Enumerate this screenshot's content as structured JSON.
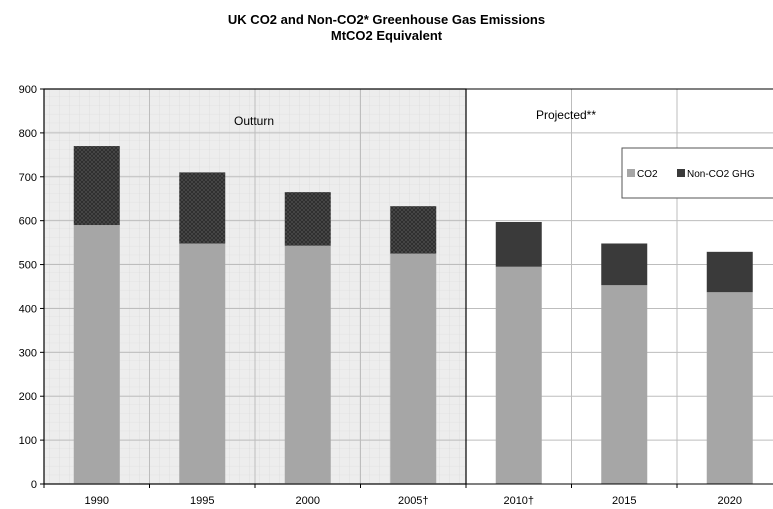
{
  "title_line1": "UK CO2 and Non-CO2* Greenhouse Gas Emissions",
  "title_line2": "MtCO2 Equivalent",
  "regions": {
    "outturn_label": "Outturn",
    "projected_label": "Projected**"
  },
  "legend": {
    "co2": "CO2",
    "non_co2": "Non-CO2 GHG"
  },
  "colors": {
    "co2": "#a6a6a6",
    "non_co2": "#3a3a3a",
    "outturn_bg": "#ededed",
    "grid": "#bdbdbd"
  },
  "chart_data": {
    "type": "bar",
    "stacked": true,
    "categories": [
      "1990",
      "1995",
      "2000",
      "2005†",
      "2010†",
      "2015",
      "2020"
    ],
    "series": [
      {
        "name": "CO2",
        "values": [
          590,
          548,
          543,
          525,
          495,
          453,
          437
        ]
      },
      {
        "name": "Non-CO2 GHG",
        "values": [
          180,
          162,
          122,
          108,
          102,
          95,
          92
        ]
      }
    ],
    "title": "UK CO2 and Non-CO2* Greenhouse Gas Emissions",
    "subtitle": "MtCO2 Equivalent",
    "ylim": [
      0,
      900
    ],
    "yticks": [
      0,
      100,
      200,
      300,
      400,
      500,
      600,
      700,
      800,
      900
    ],
    "outturn_categories": [
      "1990",
      "1995",
      "2000",
      "2005†"
    ],
    "projected_categories": [
      "2010†",
      "2015",
      "2020"
    ],
    "grid": true,
    "legend_position": "right"
  }
}
